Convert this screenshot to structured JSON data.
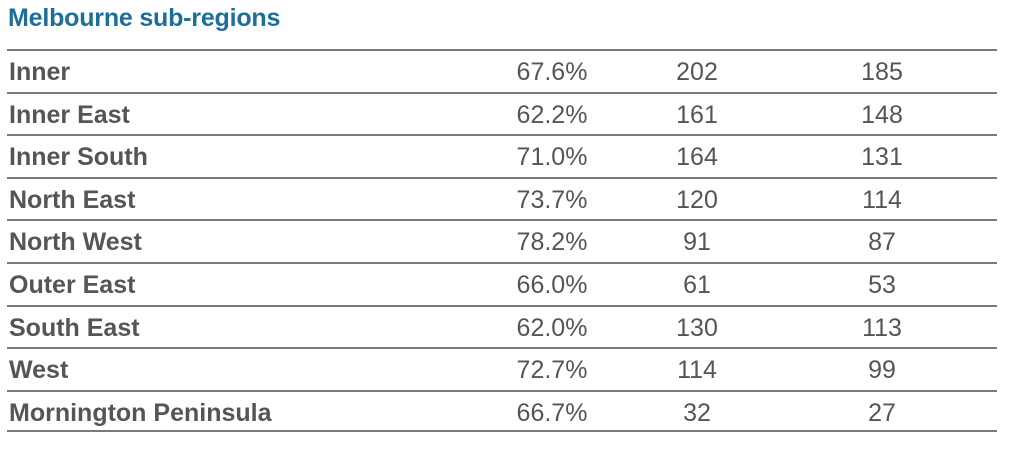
{
  "title": "Melbourne sub-regions",
  "rows": [
    {
      "region": "Inner",
      "pct": "67.6%",
      "v1": "202",
      "v2": "185"
    },
    {
      "region": "Inner East",
      "pct": "62.2%",
      "v1": "161",
      "v2": "148"
    },
    {
      "region": "Inner South",
      "pct": "71.0%",
      "v1": "164",
      "v2": "131"
    },
    {
      "region": "North East",
      "pct": "73.7%",
      "v1": "120",
      "v2": "114"
    },
    {
      "region": "North West",
      "pct": "78.2%",
      "v1": "91",
      "v2": "87"
    },
    {
      "region": "Outer East",
      "pct": "66.0%",
      "v1": "61",
      "v2": "53"
    },
    {
      "region": "South East",
      "pct": "62.0%",
      "v1": "130",
      "v2": "113"
    },
    {
      "region": "West",
      "pct": "72.7%",
      "v1": "114",
      "v2": "99"
    },
    {
      "region": "Mornington Peninsula",
      "pct": "66.7%",
      "v1": "32",
      "v2": "27"
    }
  ],
  "colors": {
    "title": "#1b6f9a",
    "text": "#555555",
    "rule": "#7a7a7a"
  }
}
